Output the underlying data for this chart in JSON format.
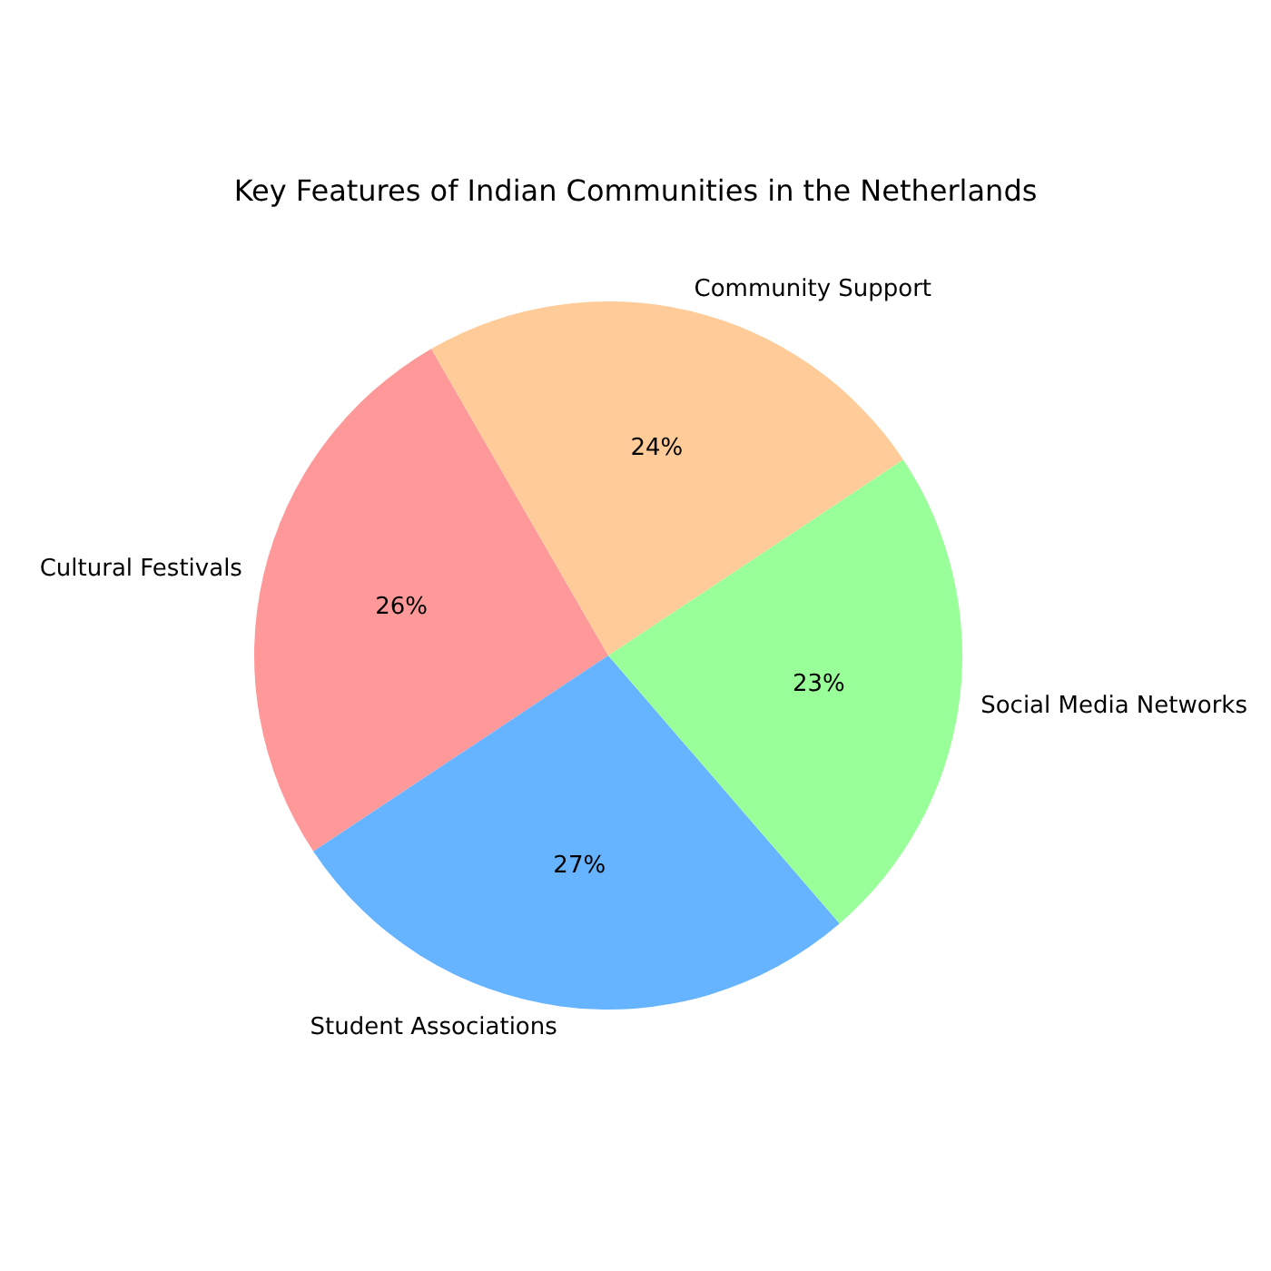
{
  "chart_data": {
    "type": "pie",
    "title": "Key Features of Indian Communities in the Netherlands",
    "categories": [
      "Cultural Festivals",
      "Student Associations",
      "Social Media Networks",
      "Community Support"
    ],
    "values": [
      26,
      27,
      23,
      24
    ],
    "value_labels": [
      "26%",
      "27%",
      "23%",
      "24%"
    ],
    "colors": [
      "#ff9999",
      "#66b3ff",
      "#99ff99",
      "#ffcc99"
    ],
    "legend": false
  }
}
